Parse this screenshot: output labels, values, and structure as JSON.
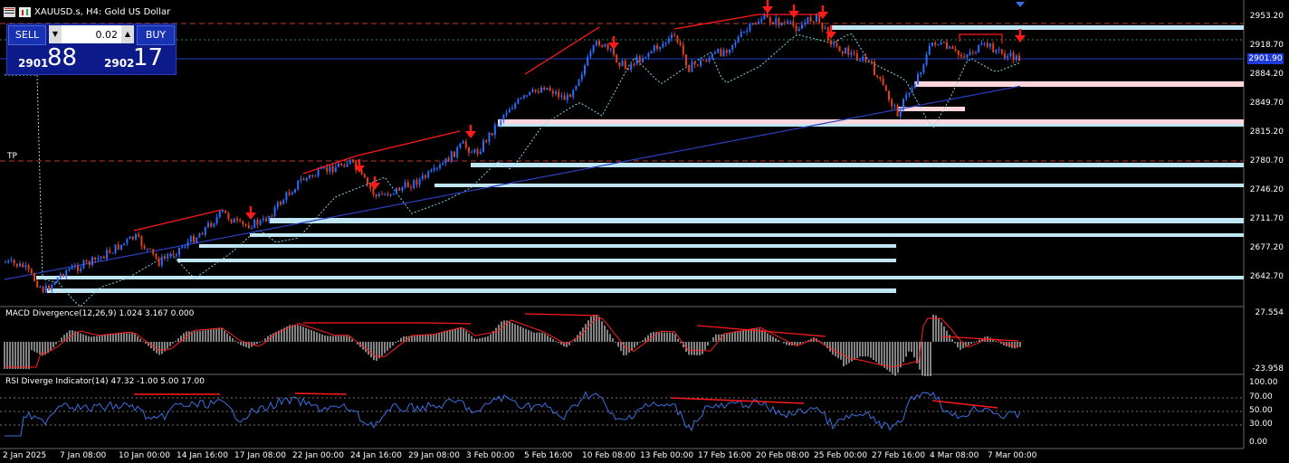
{
  "header": {
    "symbol_title": "XAUUSD.s, H4:  Gold US Dollar"
  },
  "trade_panel": {
    "sell_label": "SELL",
    "buy_label": "BUY",
    "lot_value": "0.02",
    "sell_price_small": "2901",
    "sell_price_big": "88",
    "buy_price_small": "2902",
    "buy_price_big": "17"
  },
  "tp_label": "TP",
  "current_price": "2901.90",
  "price_axis": [
    "2953.20",
    "2918.70",
    "2884.20",
    "2849.70",
    "2815.20",
    "2780.70",
    "2746.20",
    "2711.70",
    "2677.20",
    "2642.70"
  ],
  "macd": {
    "label": "MACD Divergence(12,26,9) 1.024 3.167 0.000",
    "axis_top": "27.554",
    "axis_bottom": "-23.958"
  },
  "rsi": {
    "label": "RSI Diverge Indicator(14) 47.32 -1.00 5.00 17.00",
    "levels": [
      "100.00",
      "70.00",
      "50.00",
      "30.00",
      "0.00"
    ]
  },
  "time_axis": [
    "2 Jan 2025",
    "7 Jan 08:00",
    "10 Jan 00:00",
    "14 Jan 16:00",
    "17 Jan 08:00",
    "22 Jan 00:00",
    "24 Jan 16:00",
    "29 Jan 08:00",
    "3 Feb 00:00",
    "5 Feb 16:00",
    "10 Feb 08:00",
    "13 Feb 00:00",
    "17 Feb 16:00",
    "20 Feb 08:00",
    "25 Feb 00:00",
    "27 Feb 16:00",
    "4 Mar 08:00",
    "7 Mar 00:00"
  ],
  "colors": {
    "bull": "#2a6cff",
    "bear": "#e0401a",
    "zone_support": "#bfe6f2",
    "zone_resist": "#ffd6dc",
    "divergence": "#ff1a1a",
    "rsi_line": "#3b6fe0"
  },
  "icons": [
    "chart-menu-icon",
    "chart-type-icon",
    "sell-arrow-icon"
  ]
}
